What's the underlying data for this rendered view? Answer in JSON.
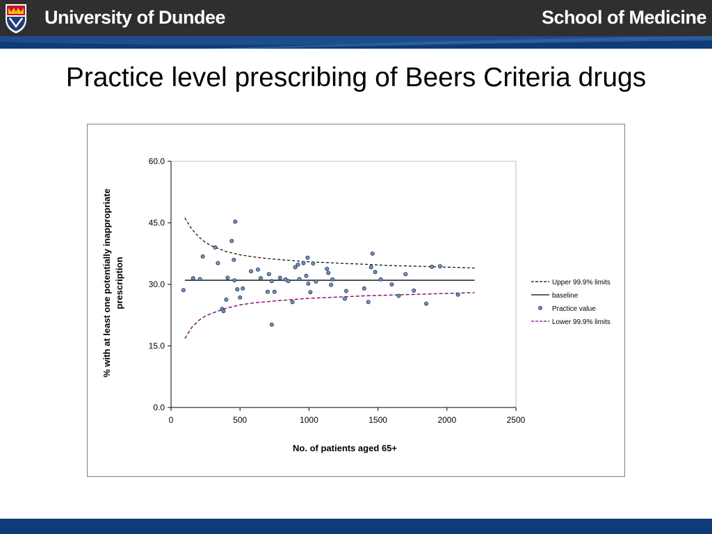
{
  "header": {
    "university": "University of Dundee",
    "school": "School of Medicine",
    "colors": {
      "bar": "#2f2f2f",
      "band": "#1d4e89",
      "footer": "#0f3c78"
    }
  },
  "slide": {
    "title": "Practice level prescribing of Beers Criteria drugs"
  },
  "chart_data": {
    "type": "scatter",
    "xlabel": "No. of  patients aged 65+",
    "ylabel_lines": [
      "% with at least one potentially inappropriate",
      "prescription"
    ],
    "xlim": [
      0,
      2500
    ],
    "ylim": [
      0,
      60
    ],
    "x_ticks": [
      "0",
      "500",
      "1000",
      "1500",
      "2000",
      "2500"
    ],
    "y_ticks": [
      "0.0",
      "15.0",
      "30.0",
      "45.0",
      "60.0"
    ],
    "grid": false,
    "legend_position": "right",
    "legend": [
      {
        "label": "Upper 99.9% limits",
        "style": "dashed",
        "color": "#000000"
      },
      {
        "label": "baseline",
        "style": "solid",
        "color": "#000000"
      },
      {
        "label": "Practice value",
        "style": "marker",
        "color": "#6d93c0"
      },
      {
        "label": "Lower 99.9% limits",
        "style": "dashed",
        "color": "#800080"
      }
    ],
    "baseline": {
      "y": 31.0,
      "x_range": [
        100,
        2200
      ]
    },
    "upper_limit": {
      "x": [
        100,
        150,
        200,
        250,
        300,
        400,
        500,
        600,
        700,
        800,
        1000,
        1200,
        1400,
        1600,
        1800,
        2000,
        2200
      ],
      "y": [
        46.2,
        43.5,
        41.6,
        40.2,
        39.3,
        38.0,
        37.2,
        36.7,
        36.3,
        36.0,
        35.5,
        35.2,
        34.9,
        34.6,
        34.4,
        34.2,
        34.0
      ]
    },
    "lower_limit": {
      "x": [
        100,
        150,
        200,
        250,
        300,
        400,
        500,
        600,
        700,
        800,
        1000,
        1200,
        1400,
        1600,
        1800,
        2000,
        2200
      ],
      "y": [
        16.8,
        19.5,
        21.2,
        22.3,
        23.0,
        24.2,
        25.0,
        25.5,
        25.8,
        26.1,
        26.6,
        26.9,
        27.2,
        27.4,
        27.6,
        27.8,
        28.0
      ]
    },
    "practice_values": [
      [
        90,
        28.6
      ],
      [
        160,
        31.5
      ],
      [
        210,
        31.3
      ],
      [
        230,
        36.8
      ],
      [
        320,
        39.0
      ],
      [
        340,
        35.2
      ],
      [
        370,
        24.0
      ],
      [
        400,
        26.3
      ],
      [
        410,
        31.6
      ],
      [
        440,
        40.6
      ],
      [
        455,
        36.0
      ],
      [
        465,
        45.3
      ],
      [
        460,
        31.0
      ],
      [
        480,
        28.8
      ],
      [
        500,
        26.8
      ],
      [
        520,
        29.0
      ],
      [
        580,
        33.2
      ],
      [
        630,
        33.6
      ],
      [
        650,
        31.5
      ],
      [
        700,
        28.2
      ],
      [
        710,
        32.5
      ],
      [
        730,
        20.2
      ],
      [
        730,
        30.8
      ],
      [
        750,
        28.2
      ],
      [
        790,
        31.6
      ],
      [
        830,
        31.2
      ],
      [
        850,
        30.8
      ],
      [
        880,
        25.7
      ],
      [
        900,
        34.2
      ],
      [
        920,
        34.8
      ],
      [
        930,
        31.3
      ],
      [
        960,
        35.2
      ],
      [
        980,
        32.1
      ],
      [
        990,
        36.5
      ],
      [
        995,
        30.2
      ],
      [
        1010,
        28.1
      ],
      [
        1030,
        35.1
      ],
      [
        1050,
        30.7
      ],
      [
        1130,
        33.8
      ],
      [
        1140,
        32.8
      ],
      [
        1160,
        29.9
      ],
      [
        1170,
        31.2
      ],
      [
        1260,
        26.5
      ],
      [
        1270,
        28.4
      ],
      [
        1400,
        29.0
      ],
      [
        1430,
        25.7
      ],
      [
        1450,
        34.2
      ],
      [
        1460,
        37.5
      ],
      [
        1480,
        33.0
      ],
      [
        1520,
        31.2
      ],
      [
        1600,
        30.0
      ],
      [
        1650,
        27.2
      ],
      [
        1700,
        32.5
      ],
      [
        1760,
        28.5
      ],
      [
        1850,
        25.3
      ],
      [
        1890,
        34.3
      ],
      [
        1950,
        34.4
      ],
      [
        2080,
        27.5
      ],
      [
        380,
        23.5
      ]
    ]
  }
}
